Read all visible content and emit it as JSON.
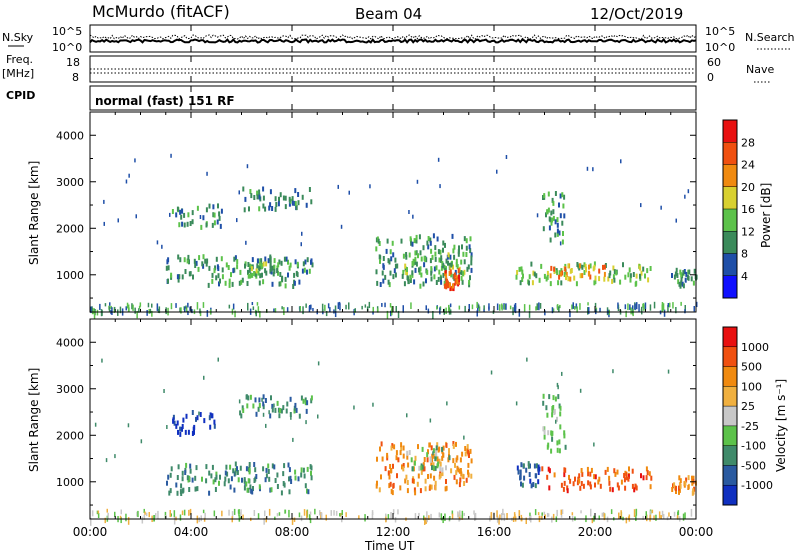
{
  "header": {
    "station": "McMurdo (fitACF)",
    "beam": "Beam 04",
    "date": "12/Oct/2019"
  },
  "top_panels": {
    "nsky_label": "N.Sky",
    "nsearch_label": "N.Search",
    "noise_ticks": [
      "10^5",
      "10^0"
    ],
    "freq_label_1": "Freq.",
    "freq_label_2": "[MHz]",
    "freq_ticks": [
      "18",
      "8"
    ],
    "nave_label": "Nave",
    "nave_ticks": [
      "60",
      "0"
    ],
    "cpid_label": "CPID",
    "cpid_value": "normal (fast) 151 RF"
  },
  "chart_data": [
    {
      "type": "heatmap",
      "name": "power",
      "ylabel": "Slant Range [km]",
      "xlabel": "Time UT",
      "ylim": [
        200,
        4500
      ],
      "y_ticks": [
        "4000",
        "3000",
        "2000",
        "1000"
      ],
      "colorbar_label": "Power [dB]",
      "colorbar_ticks": [
        "28",
        "24",
        "20",
        "16",
        "12",
        "8",
        "4"
      ],
      "colorbar_colors": [
        "#1010ff",
        "#1f4fa8",
        "#3a8a5a",
        "#5cc24a",
        "#d8d030",
        "#f08a10",
        "#f05010",
        "#e81010"
      ],
      "regions": [
        {
          "t0": 3.0,
          "t1": 8.8,
          "r0": 800,
          "r1": 1450,
          "level": 2
        },
        {
          "t0": 6.2,
          "t1": 7.4,
          "r0": 1000,
          "r1": 1300,
          "level": 3
        },
        {
          "t0": 3.2,
          "t1": 5.2,
          "r0": 2050,
          "r1": 2550,
          "level": 2
        },
        {
          "t0": 5.8,
          "t1": 8.8,
          "r0": 2450,
          "r1": 2900,
          "level": 2
        },
        {
          "t0": 11.3,
          "t1": 15.1,
          "r0": 800,
          "r1": 1900,
          "level": 2
        },
        {
          "t0": 12.2,
          "t1": 14.8,
          "r0": 950,
          "r1": 1500,
          "level": 3
        },
        {
          "t0": 14.0,
          "t1": 14.6,
          "r0": 750,
          "r1": 1150,
          "level": 6
        },
        {
          "t0": 16.8,
          "t1": 22.2,
          "r0": 850,
          "r1": 1300,
          "level": 3
        },
        {
          "t0": 18.2,
          "t1": 20.4,
          "r0": 950,
          "r1": 1250,
          "level": 5
        },
        {
          "t0": 17.9,
          "t1": 18.8,
          "r0": 1700,
          "r1": 2900,
          "level": 2
        },
        {
          "t0": 23.0,
          "t1": 24.0,
          "r0": 800,
          "r1": 1150,
          "level": 2
        }
      ]
    },
    {
      "type": "heatmap",
      "name": "velocity",
      "ylabel": "Slant Range [km]",
      "xlabel": "Time UT",
      "ylim": [
        200,
        4500
      ],
      "y_ticks": [
        "4000",
        "3000",
        "2000",
        "1000"
      ],
      "colorbar_label": "Velocity [m s⁻¹]",
      "colorbar_ticks": [
        "1000",
        "500",
        "100",
        "25",
        "-25",
        "-100",
        "-500",
        "-1000"
      ],
      "colorbar_colors": [
        "#1030c0",
        "#2a5aa0",
        "#3f8a6a",
        "#5cc24a",
        "#c8c8c8",
        "#f0b040",
        "#f08a10",
        "#f05010",
        "#e81010"
      ],
      "regions": [
        {
          "t0": 3.0,
          "t1": 8.8,
          "r0": 800,
          "r1": 1450,
          "level": 2
        },
        {
          "t0": 3.2,
          "t1": 5.0,
          "r0": 2050,
          "r1": 2550,
          "level": 0
        },
        {
          "t0": 5.8,
          "t1": 8.8,
          "r0": 2450,
          "r1": 2900,
          "level": 2
        },
        {
          "t0": 11.3,
          "t1": 15.1,
          "r0": 800,
          "r1": 1900,
          "level": 6
        },
        {
          "t0": 12.5,
          "t1": 14.2,
          "r0": 1300,
          "r1": 1800,
          "level": 3
        },
        {
          "t0": 16.8,
          "t1": 17.8,
          "r0": 950,
          "r1": 1500,
          "level": 1
        },
        {
          "t0": 17.8,
          "t1": 22.2,
          "r0": 850,
          "r1": 1350,
          "level": 7
        },
        {
          "t0": 17.9,
          "t1": 18.8,
          "r0": 1700,
          "r1": 2900,
          "level": 3
        },
        {
          "t0": 23.0,
          "t1": 24.0,
          "r0": 800,
          "r1": 1150,
          "level": 6
        }
      ]
    }
  ],
  "time_axis": {
    "label": "Time UT",
    "ticks": [
      "00:00",
      "04:00",
      "08:00",
      "12:00",
      "16:00",
      "20:00",
      "00:00"
    ]
  }
}
